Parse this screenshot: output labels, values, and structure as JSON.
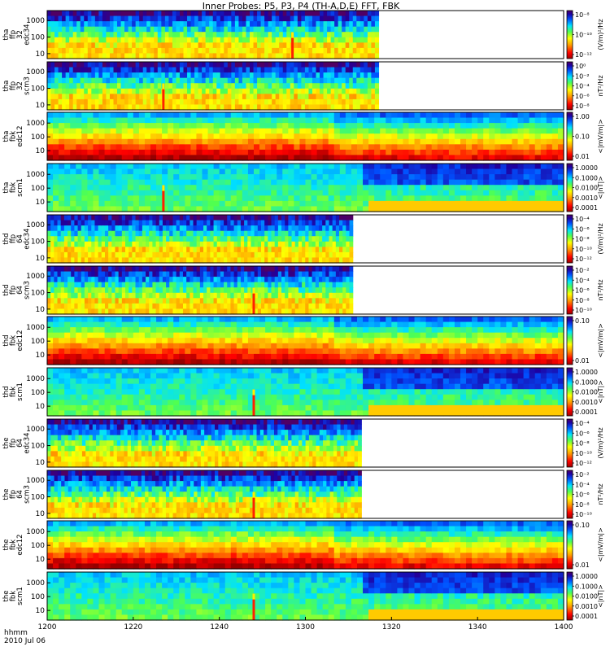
{
  "title": "Inner Probes: P5, P3, P4 (TH-A,D,E) FFT, FBK",
  "x_axis": {
    "ticks": [
      "1200",
      "1220",
      "1240",
      "1300",
      "1320",
      "1340",
      "1400"
    ],
    "label_lines": [
      "hhmm",
      "2010 Jul 06"
    ]
  },
  "chart_data": [
    {
      "type": "heatmap",
      "panel": "tha_ffp_32_edc34",
      "ylabel_lines": [
        "tha",
        "ffp",
        "32",
        "edc34"
      ],
      "y_ticks": [
        "1000",
        "100",
        "10"
      ],
      "ylim": [
        5,
        4000
      ],
      "y_scale": "log",
      "data_end": "13:17",
      "spike_at": "12:57",
      "colorbar": {
        "ticks": [
          "10⁻⁸",
          "10⁻¹⁰",
          "10⁻¹²"
        ],
        "unit": "(V/m)²/Hz"
      }
    },
    {
      "type": "heatmap",
      "panel": "tha_ffp_32_scm3",
      "ylabel_lines": [
        "tha",
        "ffp",
        "32",
        "scm3"
      ],
      "y_ticks": [
        "1000",
        "100",
        "10"
      ],
      "ylim": [
        5,
        4000
      ],
      "y_scale": "log",
      "data_end": "13:17",
      "spike_at": "12:27",
      "colorbar": {
        "ticks": [
          "10⁰",
          "10⁻²",
          "10⁻⁴",
          "10⁻⁶",
          "10⁻⁸"
        ],
        "unit": "nT²/Hz"
      }
    },
    {
      "type": "heatmap",
      "panel": "tha_fbk_edc12",
      "ylabel_lines": [
        "tha",
        "fbk",
        "edc12"
      ],
      "y_ticks": [
        "1000",
        "100",
        "10"
      ],
      "ylim": [
        2,
        6000
      ],
      "y_scale": "log",
      "data_end": "14:00",
      "spike_at": "",
      "colorbar": {
        "ticks": [
          "1.00",
          "0.10",
          "0.01"
        ],
        "unit": "<|mV/m|>"
      }
    },
    {
      "type": "heatmap",
      "panel": "tha_fbk_scm1",
      "ylabel_lines": [
        "tha",
        "fbk",
        "scm1"
      ],
      "y_ticks": [
        "1000",
        "100",
        "10"
      ],
      "ylim": [
        2,
        6000
      ],
      "y_scale": "log",
      "data_end": "14:00",
      "spike_at": "12:27",
      "colorbar": {
        "ticks": [
          "1.0000",
          "0.1000",
          "0.0100",
          "0.0010",
          "0.0001"
        ],
        "unit": "<|nT|>"
      }
    },
    {
      "type": "heatmap",
      "panel": "thd_ffp_64_edc34",
      "ylabel_lines": [
        "thd",
        "ffp",
        "64",
        "edc34"
      ],
      "y_ticks": [
        "1000",
        "100",
        "10"
      ],
      "ylim": [
        5,
        4000
      ],
      "y_scale": "log",
      "data_end": "13:11",
      "spike_at": "",
      "colorbar": {
        "ticks": [
          "10⁻⁴",
          "10⁻⁶",
          "10⁻⁸",
          "10⁻¹⁰",
          "10⁻¹²"
        ],
        "unit": "(V/m)²/Hz"
      }
    },
    {
      "type": "heatmap",
      "panel": "thd_ffp_64_scm3",
      "ylabel_lines": [
        "thd",
        "ffp",
        "64",
        "scm3"
      ],
      "y_ticks": [
        "1000",
        "100",
        "10"
      ],
      "ylim": [
        5,
        4000
      ],
      "y_scale": "log",
      "data_end": "13:11",
      "spike_at": "12:48",
      "colorbar": {
        "ticks": [
          "10⁻²",
          "10⁻⁴",
          "10⁻⁶",
          "10⁻⁸",
          "10⁻¹⁰"
        ],
        "unit": "nT²/Hz"
      }
    },
    {
      "type": "heatmap",
      "panel": "thd_fbk_edc12",
      "ylabel_lines": [
        "thd",
        "fbk",
        "edc12"
      ],
      "y_ticks": [
        "1000",
        "100",
        "10"
      ],
      "ylim": [
        2,
        6000
      ],
      "y_scale": "log",
      "data_end": "14:00",
      "spike_at": "",
      "colorbar": {
        "ticks": [
          "0.10",
          "0.01"
        ],
        "unit": "<|mV/m|>"
      }
    },
    {
      "type": "heatmap",
      "panel": "thd_fbk_scm1",
      "ylabel_lines": [
        "thd",
        "fbk",
        "scm1"
      ],
      "y_ticks": [
        "1000",
        "100",
        "10"
      ],
      "ylim": [
        2,
        6000
      ],
      "y_scale": "log",
      "data_end": "14:00",
      "spike_at": "12:48",
      "colorbar": {
        "ticks": [
          "1.0000",
          "0.1000",
          "0.0100",
          "0.0010",
          "0.0001"
        ],
        "unit": "<|nT|>"
      }
    },
    {
      "type": "heatmap",
      "panel": "the_ffp_64_edc34",
      "ylabel_lines": [
        "the",
        "ffp",
        "64",
        "edc34"
      ],
      "y_ticks": [
        "1000",
        "100",
        "10"
      ],
      "ylim": [
        5,
        4000
      ],
      "y_scale": "log",
      "data_end": "13:13",
      "spike_at": "",
      "colorbar": {
        "ticks": [
          "10⁻⁴",
          "10⁻⁶",
          "10⁻⁸",
          "10⁻¹⁰",
          "10⁻¹²"
        ],
        "unit": "(V/m)²/Hz"
      }
    },
    {
      "type": "heatmap",
      "panel": "the_ffp_64_scm3",
      "ylabel_lines": [
        "the",
        "ffp",
        "64",
        "scm3"
      ],
      "y_ticks": [
        "1000",
        "100",
        "10"
      ],
      "ylim": [
        5,
        4000
      ],
      "y_scale": "log",
      "data_end": "13:13",
      "spike_at": "12:48",
      "colorbar": {
        "ticks": [
          "10⁻²",
          "10⁻⁴",
          "10⁻⁶",
          "10⁻⁸",
          "10⁻¹⁰"
        ],
        "unit": "nT²/Hz"
      }
    },
    {
      "type": "heatmap",
      "panel": "the_fbk_edc12",
      "ylabel_lines": [
        "the",
        "fbk",
        "edc12"
      ],
      "y_ticks": [
        "1000",
        "100",
        "10"
      ],
      "ylim": [
        2,
        6000
      ],
      "y_scale": "log",
      "data_end": "14:00",
      "spike_at": "",
      "colorbar": {
        "ticks": [
          "0.10",
          "0.01"
        ],
        "unit": "<|mV/m|>"
      }
    },
    {
      "type": "heatmap",
      "panel": "the_fbk_scm1",
      "ylabel_lines": [
        "the",
        "fbk",
        "scm1"
      ],
      "y_ticks": [
        "1000",
        "100",
        "10"
      ],
      "ylim": [
        2,
        6000
      ],
      "y_scale": "log",
      "data_end": "14:00",
      "spike_at": "12:48",
      "colorbar": {
        "ticks": [
          "1.0000",
          "0.1000",
          "0.0100",
          "0.0010",
          "0.0001"
        ],
        "unit": "<|nT|>"
      }
    }
  ]
}
